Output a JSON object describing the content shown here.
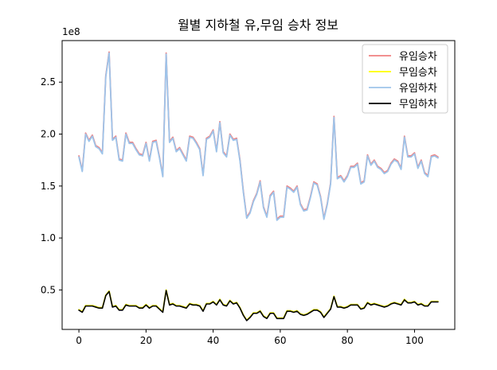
{
  "chart_data": {
    "type": "line",
    "title": "월별 지하철 유,무임 승차 정보",
    "xlabel": "",
    "ylabel": "",
    "y_offset_label": "1e8",
    "y_scale": 100000000,
    "xlim": [
      -5,
      112
    ],
    "ylim": [
      12000000,
      290000000
    ],
    "xticks": [
      0,
      20,
      40,
      60,
      80,
      100
    ],
    "yticks": [
      50000000,
      100000000,
      150000000,
      200000000,
      250000000
    ],
    "ytick_labels": [
      "0.5",
      "1.0",
      "1.5",
      "2.0",
      "2.5"
    ],
    "grid": false,
    "legend_position": "top-right",
    "x": [
      0,
      1,
      2,
      3,
      4,
      5,
      6,
      7,
      8,
      9,
      10,
      11,
      12,
      13,
      14,
      15,
      16,
      17,
      18,
      19,
      20,
      21,
      22,
      23,
      24,
      25,
      26,
      27,
      28,
      29,
      30,
      31,
      32,
      33,
      34,
      35,
      36,
      37,
      38,
      39,
      40,
      41,
      42,
      43,
      44,
      45,
      46,
      47,
      48,
      49,
      50,
      51,
      52,
      53,
      54,
      55,
      56,
      57,
      58,
      59,
      60,
      61,
      62,
      63,
      64,
      65,
      66,
      67,
      68,
      69,
      70,
      71,
      72,
      73,
      74,
      75,
      76,
      77,
      78,
      79,
      80,
      81,
      82,
      83,
      84,
      85,
      86,
      87,
      88,
      89,
      90,
      91,
      92,
      93,
      94,
      95,
      96,
      97,
      98,
      99,
      100,
      101,
      102,
      103,
      104,
      105,
      106,
      107
    ],
    "series": [
      {
        "name": "유임승차",
        "color": "#f08080",
        "values": [
          179000000,
          165000000,
          201000000,
          194000000,
          199000000,
          189000000,
          187000000,
          182000000,
          256000000,
          279000000,
          195000000,
          198000000,
          176000000,
          175000000,
          201000000,
          192000000,
          192000000,
          186000000,
          181000000,
          180000000,
          192000000,
          175000000,
          193000000,
          194000000,
          178000000,
          160000000,
          278000000,
          193000000,
          197000000,
          184000000,
          187000000,
          181000000,
          175000000,
          198000000,
          197000000,
          192000000,
          186000000,
          161000000,
          196000000,
          198000000,
          204000000,
          184000000,
          212000000,
          183000000,
          179000000,
          200000000,
          195000000,
          196000000,
          175000000,
          145000000,
          120000000,
          125000000,
          136000000,
          143000000,
          155000000,
          130000000,
          121000000,
          141000000,
          145000000,
          118000000,
          121000000,
          121000000,
          150000000,
          148000000,
          145000000,
          150000000,
          133000000,
          127000000,
          128000000,
          140000000,
          154000000,
          152000000,
          140000000,
          119000000,
          133000000,
          153000000,
          217000000,
          158000000,
          160000000,
          155000000,
          160000000,
          169000000,
          169000000,
          172000000,
          153000000,
          155000000,
          180000000,
          171000000,
          175000000,
          169000000,
          167000000,
          163000000,
          165000000,
          172000000,
          176000000,
          174000000,
          167000000,
          198000000,
          179000000,
          179000000,
          182000000,
          168000000,
          175000000,
          163000000,
          160000000,
          179000000,
          180000000,
          178000000
        ]
      },
      {
        "name": "무임승차",
        "color": "#ffff00",
        "values": [
          31000000,
          29000000,
          35000000,
          35000000,
          35000000,
          34000000,
          33000000,
          33000000,
          45000000,
          49000000,
          34000000,
          35000000,
          31000000,
          31000000,
          36000000,
          35000000,
          35000000,
          35000000,
          33000000,
          33000000,
          36000000,
          33000000,
          35000000,
          35000000,
          32000000,
          29000000,
          50000000,
          36000000,
          37000000,
          35000000,
          35000000,
          34000000,
          33000000,
          37000000,
          36000000,
          36000000,
          35000000,
          30000000,
          37000000,
          37000000,
          39000000,
          36000000,
          41000000,
          36000000,
          35000000,
          40000000,
          37000000,
          38000000,
          33000000,
          26000000,
          21000000,
          24000000,
          28000000,
          28000000,
          30000000,
          25000000,
          23000000,
          28000000,
          28000000,
          23000000,
          23000000,
          23000000,
          30000000,
          30000000,
          29000000,
          30000000,
          27000000,
          26000000,
          27000000,
          29000000,
          31000000,
          31000000,
          29000000,
          24000000,
          28000000,
          32000000,
          44000000,
          34000000,
          34000000,
          33000000,
          34000000,
          36000000,
          36000000,
          36000000,
          32000000,
          33000000,
          38000000,
          36000000,
          37000000,
          36000000,
          35000000,
          34000000,
          35000000,
          37000000,
          38000000,
          37000000,
          36000000,
          41000000,
          38000000,
          38000000,
          39000000,
          36000000,
          37000000,
          35000000,
          35000000,
          39000000,
          39000000,
          39000000
        ]
      },
      {
        "name": "유임하차",
        "color": "#9ec4ea",
        "values": [
          178000000,
          164000000,
          200000000,
          193000000,
          198000000,
          188000000,
          186000000,
          181000000,
          255000000,
          278000000,
          194000000,
          197000000,
          175000000,
          174000000,
          200000000,
          191000000,
          191000000,
          185000000,
          180000000,
          179000000,
          191000000,
          174000000,
          192000000,
          193000000,
          177000000,
          159000000,
          277000000,
          192000000,
          196000000,
          183000000,
          186000000,
          180000000,
          174000000,
          197000000,
          196000000,
          191000000,
          185000000,
          160000000,
          195000000,
          197000000,
          203000000,
          183000000,
          211000000,
          182000000,
          178000000,
          199000000,
          194000000,
          195000000,
          174000000,
          144000000,
          119000000,
          124000000,
          135000000,
          142000000,
          154000000,
          129000000,
          120000000,
          140000000,
          144000000,
          117000000,
          120000000,
          120000000,
          149000000,
          147000000,
          144000000,
          149000000,
          132000000,
          126000000,
          127000000,
          139000000,
          153000000,
          151000000,
          139000000,
          118000000,
          132000000,
          152000000,
          216000000,
          157000000,
          159000000,
          154000000,
          159000000,
          168000000,
          168000000,
          171000000,
          152000000,
          154000000,
          179000000,
          170000000,
          174000000,
          168000000,
          166000000,
          162000000,
          164000000,
          171000000,
          175000000,
          173000000,
          166000000,
          197000000,
          178000000,
          178000000,
          181000000,
          167000000,
          174000000,
          162000000,
          159000000,
          178000000,
          179000000,
          177000000
        ]
      },
      {
        "name": "무임하차",
        "color": "#000000",
        "values": [
          30500000,
          28500000,
          34500000,
          34500000,
          34500000,
          33500000,
          32500000,
          32500000,
          44500000,
          48500000,
          33500000,
          34500000,
          30500000,
          30500000,
          35500000,
          34500000,
          34500000,
          34500000,
          32500000,
          32500000,
          35500000,
          32500000,
          34500000,
          34500000,
          31500000,
          28500000,
          49500000,
          35500000,
          36500000,
          34500000,
          34500000,
          33500000,
          32500000,
          36500000,
          35500000,
          35500000,
          34500000,
          29500000,
          36500000,
          36500000,
          38500000,
          35500000,
          40500000,
          35500000,
          34500000,
          39500000,
          36500000,
          37500000,
          32500000,
          25500000,
          20500000,
          23500000,
          27500000,
          27500000,
          29500000,
          24500000,
          22500000,
          27500000,
          27500000,
          22500000,
          22500000,
          22500000,
          29500000,
          29500000,
          28500000,
          29500000,
          26500000,
          25500000,
          26500000,
          28500000,
          30500000,
          30500000,
          28500000,
          23500000,
          27500000,
          31500000,
          43500000,
          33500000,
          33500000,
          32500000,
          33500000,
          35500000,
          35500000,
          35500000,
          31500000,
          32500000,
          37500000,
          35500000,
          36500000,
          35500000,
          34500000,
          33500000,
          34500000,
          36500000,
          37500000,
          36500000,
          35500000,
          40500000,
          37500000,
          37500000,
          38500000,
          35500000,
          36500000,
          34500000,
          34500000,
          38500000,
          38500000,
          38500000
        ]
      }
    ]
  }
}
